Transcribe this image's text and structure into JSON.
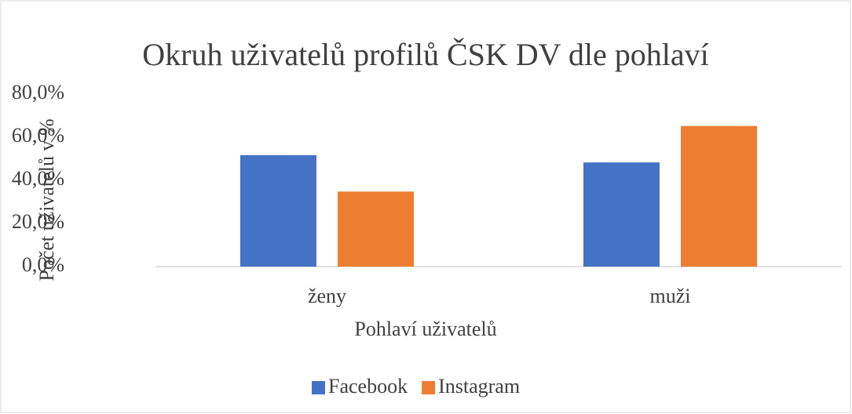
{
  "chart_data": {
    "type": "bar",
    "title": "Okruh uživatelů profilů ČSK DV dle pohlaví",
    "x_label": "Pohlaví uživatelů",
    "y_label": "Počet uživatelů v %",
    "categories": [
      "ženy",
      "muži"
    ],
    "series": [
      {
        "name": "Facebook",
        "color": "#4472c4",
        "values": [
          51.7,
          48.3
        ]
      },
      {
        "name": "Instagram",
        "color": "#ed7d31",
        "values": [
          34.8,
          65.2
        ]
      }
    ],
    "ylim": [
      0,
      80
    ],
    "yticks": [
      {
        "value": 0,
        "label": "0,0%"
      },
      {
        "value": 20,
        "label": "20,0%"
      },
      {
        "value": 40,
        "label": "40,0%"
      },
      {
        "value": 60,
        "label": "60,0%"
      },
      {
        "value": 80,
        "label": "80,0%"
      }
    ],
    "grid": false,
    "legend": "bottom"
  }
}
